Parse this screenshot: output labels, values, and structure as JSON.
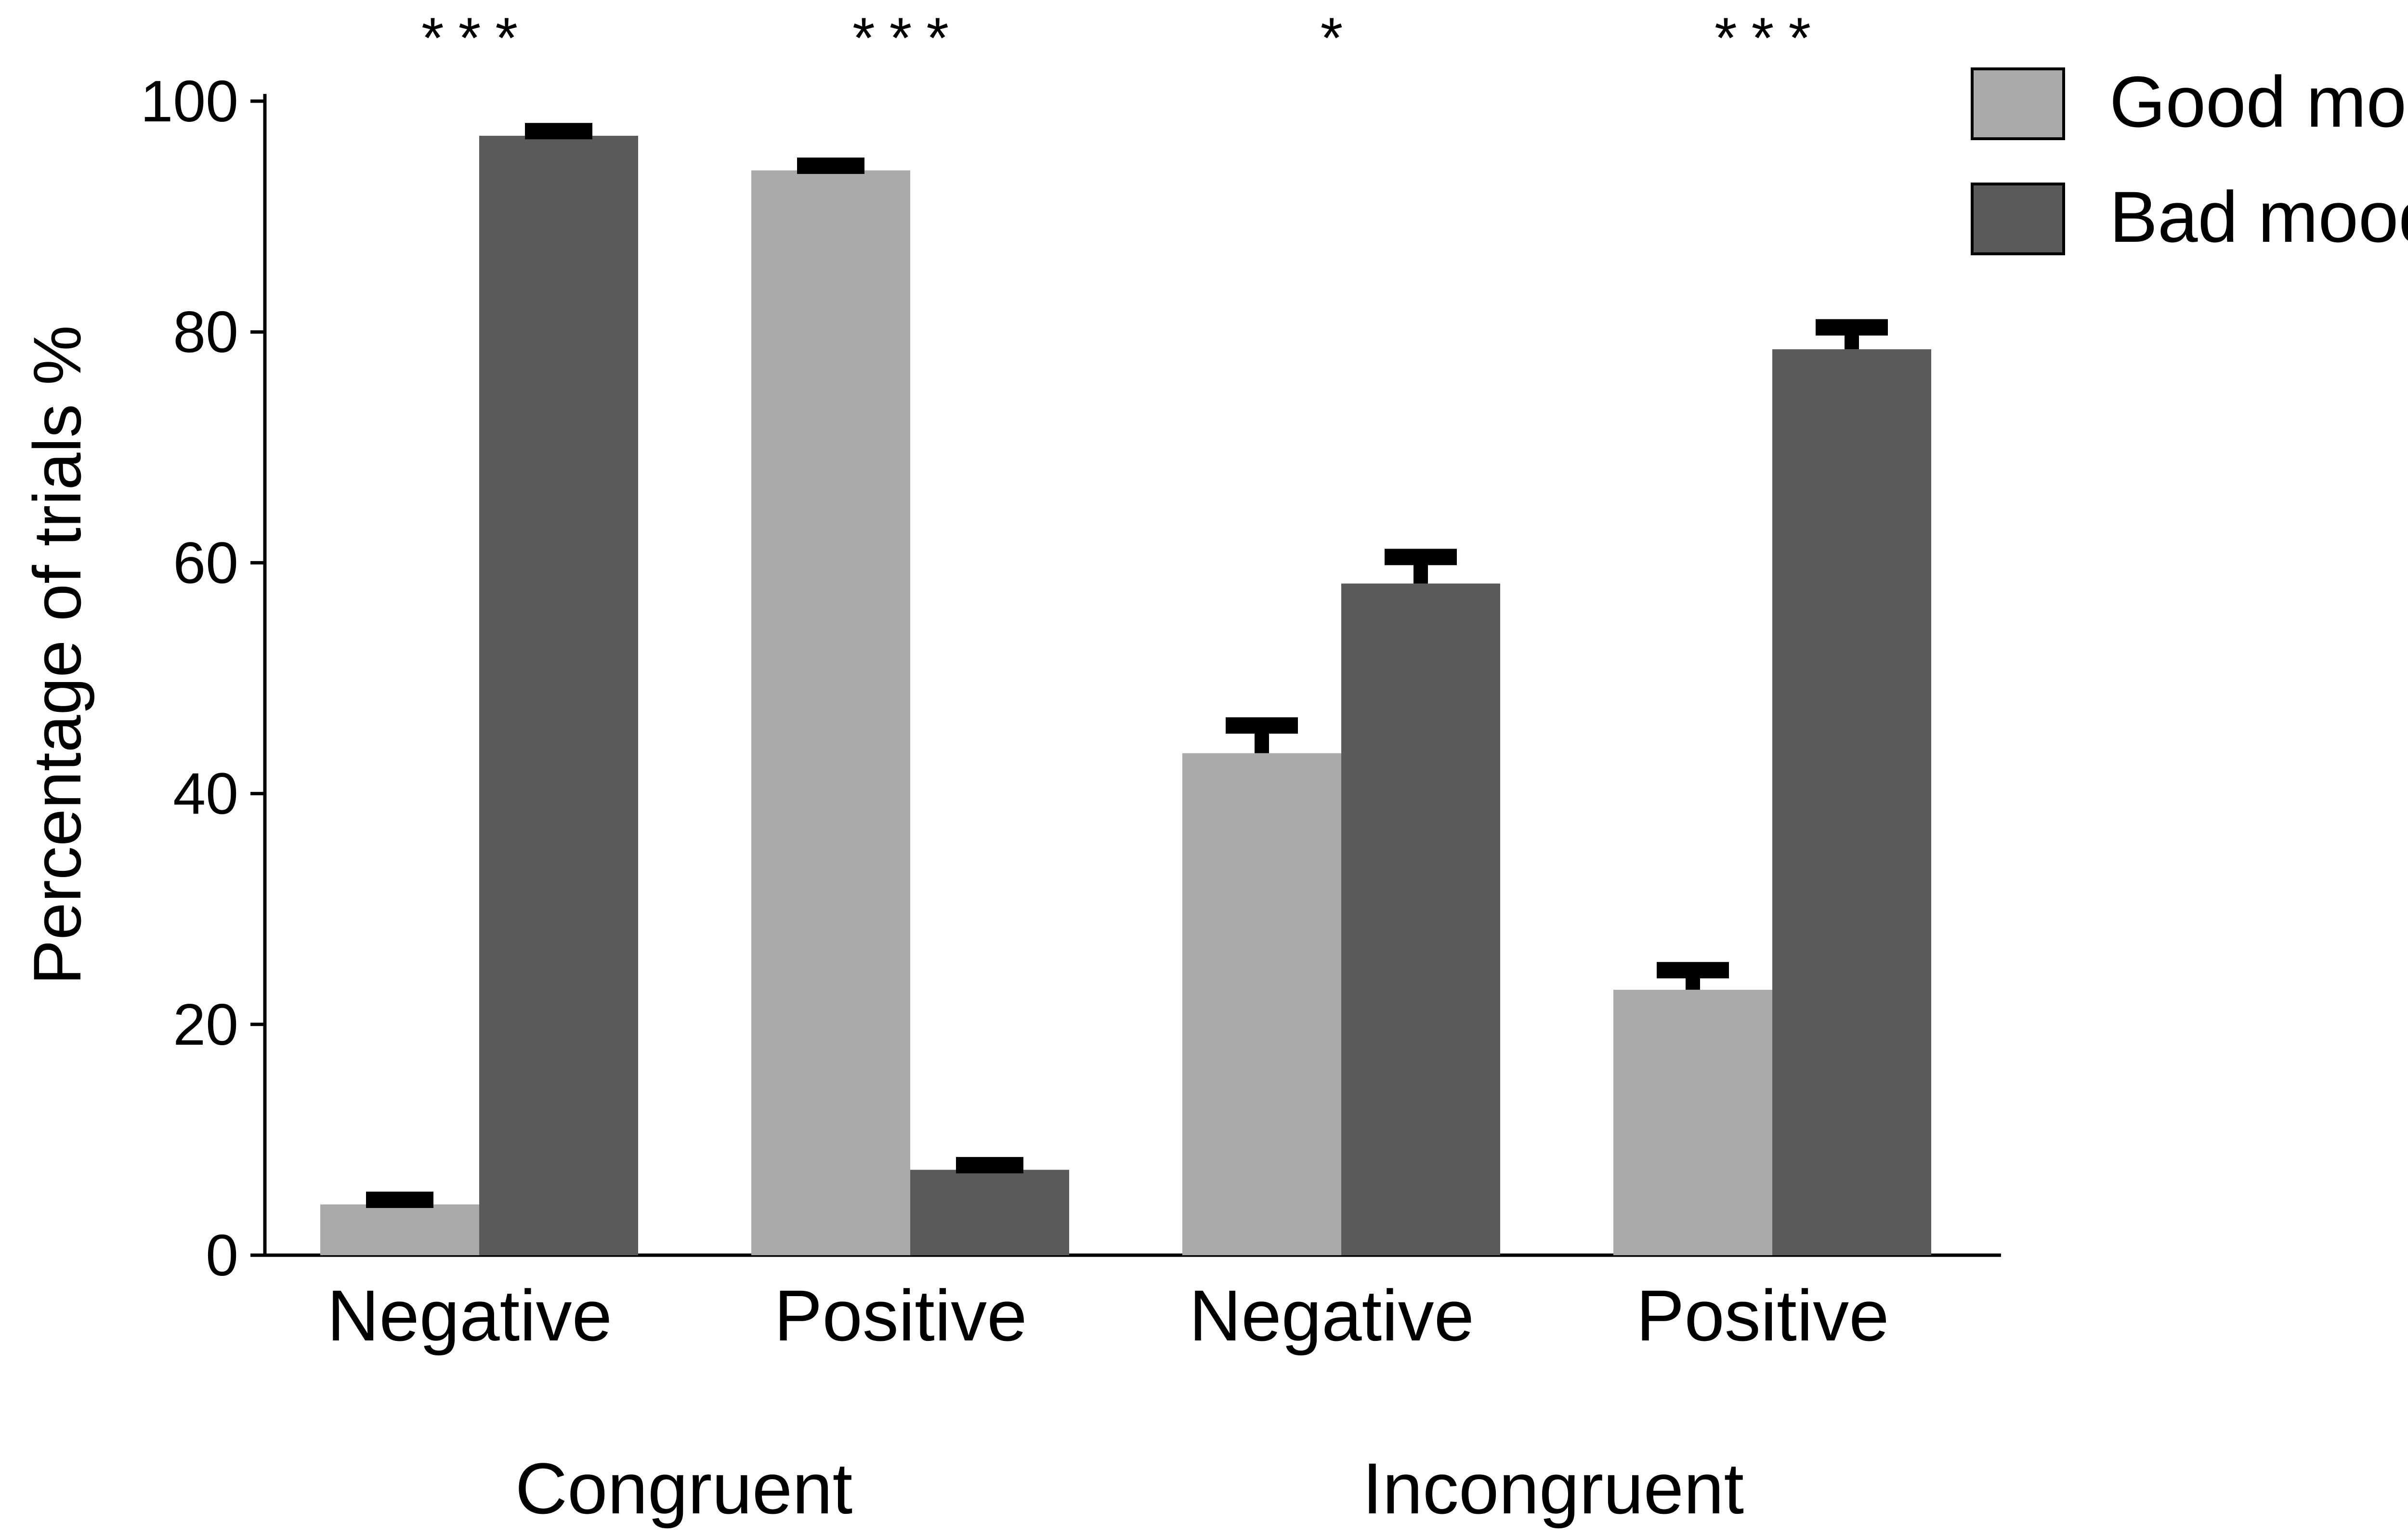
{
  "chart_data": {
    "type": "bar",
    "title": "",
    "xlabel": "",
    "ylabel": "Percentage of trials %",
    "ylim": [
      0,
      100
    ],
    "yticks": [
      0,
      20,
      40,
      60,
      80,
      100
    ],
    "grid": false,
    "legend_position": "top-right",
    "groups": [
      {
        "label": "Congruent",
        "categories": [
          "Negative",
          "Positive"
        ]
      },
      {
        "label": "Incongruent",
        "categories": [
          "Negative",
          "Positive"
        ]
      }
    ],
    "categories": [
      "Negative",
      "Positive",
      "Negative",
      "Positive"
    ],
    "significance": [
      "***",
      "***",
      "*",
      "***"
    ],
    "series": [
      {
        "name": "Good mood",
        "color": "#aaaaaa",
        "values": [
          4.4,
          94.0,
          43.5,
          23.0
        ],
        "errors": [
          0.4,
          0.4,
          2.4,
          1.7
        ]
      },
      {
        "name": "Bad mood",
        "color": "#5a5a5a",
        "values": [
          97.0,
          7.4,
          58.2,
          78.5
        ],
        "errors": [
          0.4,
          0.4,
          2.3,
          1.9
        ]
      }
    ]
  }
}
